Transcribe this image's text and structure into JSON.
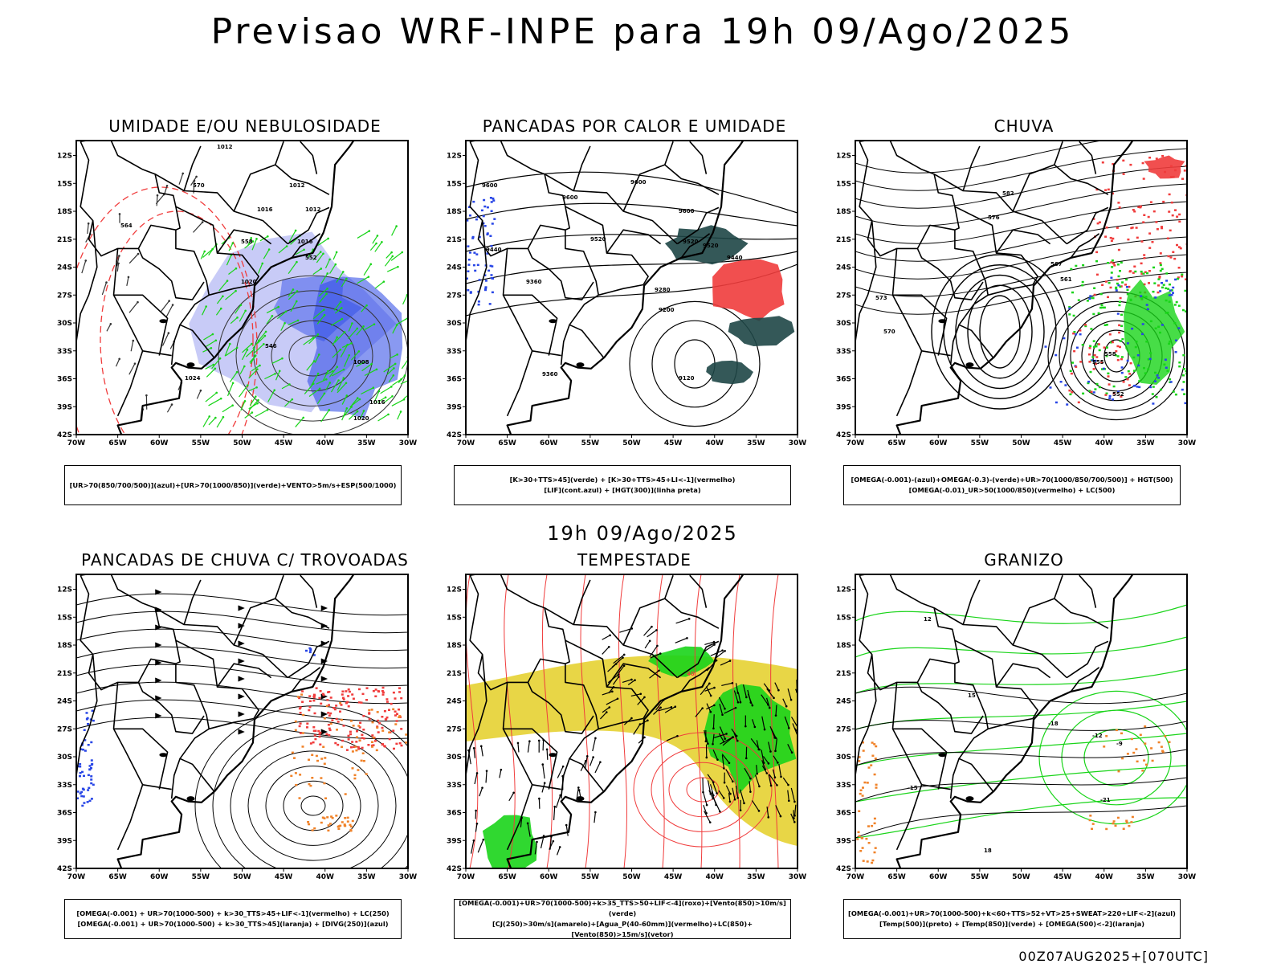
{
  "title": "Previsao WRF-INPE  para 19h 09/Ago/2025",
  "mid_time": "19h 09/Ago/2025",
  "run_id": "00Z07AUG2025+[070UTC]",
  "axes": {
    "lat_ticks": [
      "12S",
      "15S",
      "18S",
      "21S",
      "24S",
      "27S",
      "30S",
      "33S",
      "36S",
      "39S",
      "42S"
    ],
    "lon_ticks": [
      "70W",
      "65W",
      "60W",
      "55W",
      "50W",
      "45W",
      "40W",
      "35W",
      "30W"
    ]
  },
  "colors": {
    "blue": "#2846e6",
    "green": "#19d419",
    "red": "#f03c3c",
    "orange": "#f08228",
    "yellow": "#e6d232",
    "darkgreen": "#1e4646",
    "lavender": "#9aa0f0"
  },
  "panels": [
    {
      "title": "UMIDADE E/OU NEBULOSIDADE",
      "legend": [
        "[UR>70(850/700/500)](azul)+[UR>70(1000/850)](verde)+VENTO>5m/s+ESP(500/1000)"
      ],
      "labels": [
        "1012",
        "1016",
        "1012",
        "1012",
        "1016",
        "1020",
        "1024",
        "1008",
        "1016",
        "1020",
        "570",
        "564",
        "558",
        "552",
        "546"
      ]
    },
    {
      "title": "PANCADAS POR CALOR E UMIDADE",
      "legend": [
        "[K>30+TTS>45](verde) + [K>30+TTS>45+LI<-1](vermelho)",
        "[LIF](cont.azul) + [HGT(300)](linha preta)"
      ],
      "labels": [
        "9600",
        "9600",
        "9600",
        "9520",
        "9520",
        "9440",
        "9440",
        "9360",
        "9280",
        "9200",
        "9120",
        "9520",
        "9600",
        "9360"
      ]
    },
    {
      "title": "CHUVA",
      "legend": [
        "[OMEGA(-0.001)-(azul)+OMEGA(-0.3)-(verde)+UR>70(1000/850/700/500)] + HGT(500)",
        "[OMEGA(-0.01)_UR>50(1000/850)(vermelho) + LC(500)"
      ],
      "labels": [
        "582",
        "576",
        "573",
        "570",
        "567",
        "561",
        "558",
        "555",
        "552"
      ]
    },
    {
      "title": "PANCADAS DE CHUVA C/ TROVOADAS",
      "legend": [
        "[OMEGA(-0.001) + UR>70(1000-500) + k>30_TTS>45+LIF<-1](vermelho) + LC(250)",
        "[OMEGA(-0.001) + UR>70(1000-500) + k>30_TTS>45](laranja) + [DIVG(250)](azul)"
      ],
      "labels": []
    },
    {
      "title": "TEMPESTADE",
      "legend": [
        "[OMEGA(-0.001)+UR>70(1000-500)+k>35_TTS>50+LIF<-4](roxo)+[Vento(850)>10m/s](verde)",
        "[CJ(250)>30m/s](amarelo)+[Agua_P(40-60mm)](vermelho)+LC(850)+[Vento(850)>15m/s](vetor)"
      ],
      "labels": [
        "40"
      ]
    },
    {
      "title": "GRANIZO",
      "legend": [
        "[OMEGA(-0.001)+UR>70(1000-500)+k<60+TTS>52+VT>25+SWEAT>220+LIF<-2](azul)",
        "[Temp(500)](preto) + [Temp(850)](verde) + [OMEGA(500)<-2](laranja)"
      ],
      "labels": [
        "-12",
        "-15",
        "-18",
        "-21",
        "18",
        "15",
        "12",
        "-9"
      ]
    }
  ]
}
